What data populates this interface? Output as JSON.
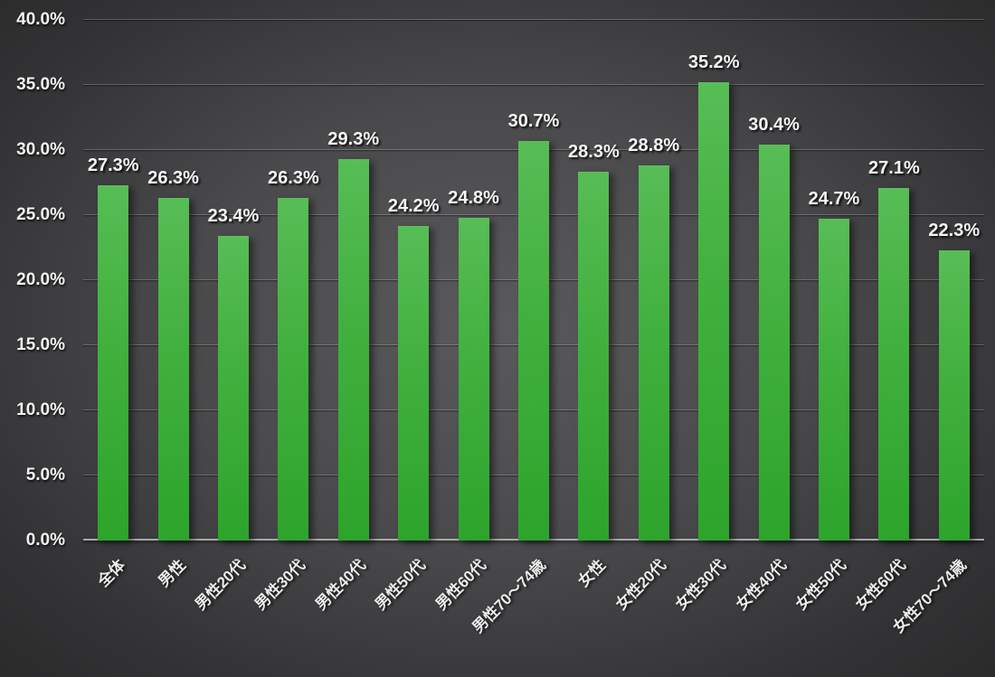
{
  "chart_data": {
    "type": "bar",
    "title": "",
    "xlabel": "",
    "ylabel": "",
    "categories": [
      "全体",
      "男性",
      "男性20代",
      "男性30代",
      "男性40代",
      "男性50代",
      "男性60代",
      "男性70～74歳",
      "女性",
      "女性20代",
      "女性30代",
      "女性40代",
      "女性50代",
      "女性60代",
      "女性70～74歳"
    ],
    "values": [
      27.3,
      26.3,
      23.4,
      26.3,
      29.3,
      24.2,
      24.8,
      30.7,
      28.3,
      28.8,
      35.2,
      30.4,
      24.7,
      27.1,
      22.3
    ],
    "data_labels": [
      "27.3%",
      "26.3%",
      "23.4%",
      "26.3%",
      "29.3%",
      "24.2%",
      "24.8%",
      "30.7%",
      "28.3%",
      "28.8%",
      "35.2%",
      "30.4%",
      "24.7%",
      "27.1%",
      "22.3%"
    ],
    "ylim": [
      0,
      40
    ],
    "y_tick_step": 5,
    "y_tick_labels": [
      "0.0%",
      "5.0%",
      "10.0%",
      "15.0%",
      "20.0%",
      "25.0%",
      "30.0%",
      "35.0%",
      "40.0%"
    ],
    "grid": true,
    "legend_position": "none",
    "x_label_rotation_deg": 45,
    "colors": {
      "bar_gradient_top": "#57bd55",
      "bar_gradient_bottom": "#2da42b",
      "background_center": "#5a5a5c",
      "background_edge": "#232324",
      "gridline": "rgba(255,255,255,0.22)",
      "axis_line": "#a9a9a9",
      "label_text": "#f2f2f2"
    }
  }
}
